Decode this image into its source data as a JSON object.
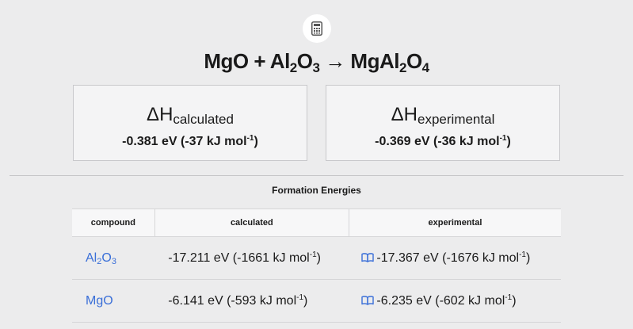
{
  "reaction": {
    "reactant1": "MgO",
    "plus": " + ",
    "reactant2_a": "Al",
    "reactant2_sub1": "2",
    "reactant2_b": "O",
    "reactant2_sub2": "3",
    "arrow": " → ",
    "product_a": "MgAl",
    "product_sub1": "2",
    "product_b": "O",
    "product_sub2": "4"
  },
  "cards": {
    "calculated": {
      "delta": "ΔH",
      "sub": "calculated",
      "value": "-0.381 eV (-37 kJ mol",
      "sup": "-1",
      "close": ")"
    },
    "experimental": {
      "delta": "ΔH",
      "sub": "experimental",
      "value": "-0.369 eV (-36 kJ mol",
      "sup": "-1",
      "close": ")"
    }
  },
  "formation": {
    "title": "Formation Energies",
    "headers": [
      "compound",
      "calculated",
      "experimental"
    ],
    "rows": [
      {
        "compound_a": "Al",
        "compound_sub1": "2",
        "compound_b": "O",
        "compound_sub2": "3",
        "calculated": "-17.211 eV (-1661 kJ mol",
        "calculated_sup": "-1",
        "calculated_close": ")",
        "experimental": "-17.367 eV (-1676 kJ mol",
        "experimental_sup": "-1",
        "experimental_close": ")"
      },
      {
        "compound_a": "MgO",
        "calculated": "-6.141 eV (-593 kJ mol",
        "calculated_sup": "-1",
        "calculated_close": ")",
        "experimental": "-6.235 eV (-602 kJ mol",
        "experimental_sup": "-1",
        "experimental_close": ")"
      }
    ]
  },
  "icons": {
    "top": "calculator-icon",
    "reference": "book-icon"
  },
  "colors": {
    "link": "#3a6fd8",
    "background": "#ececed"
  }
}
